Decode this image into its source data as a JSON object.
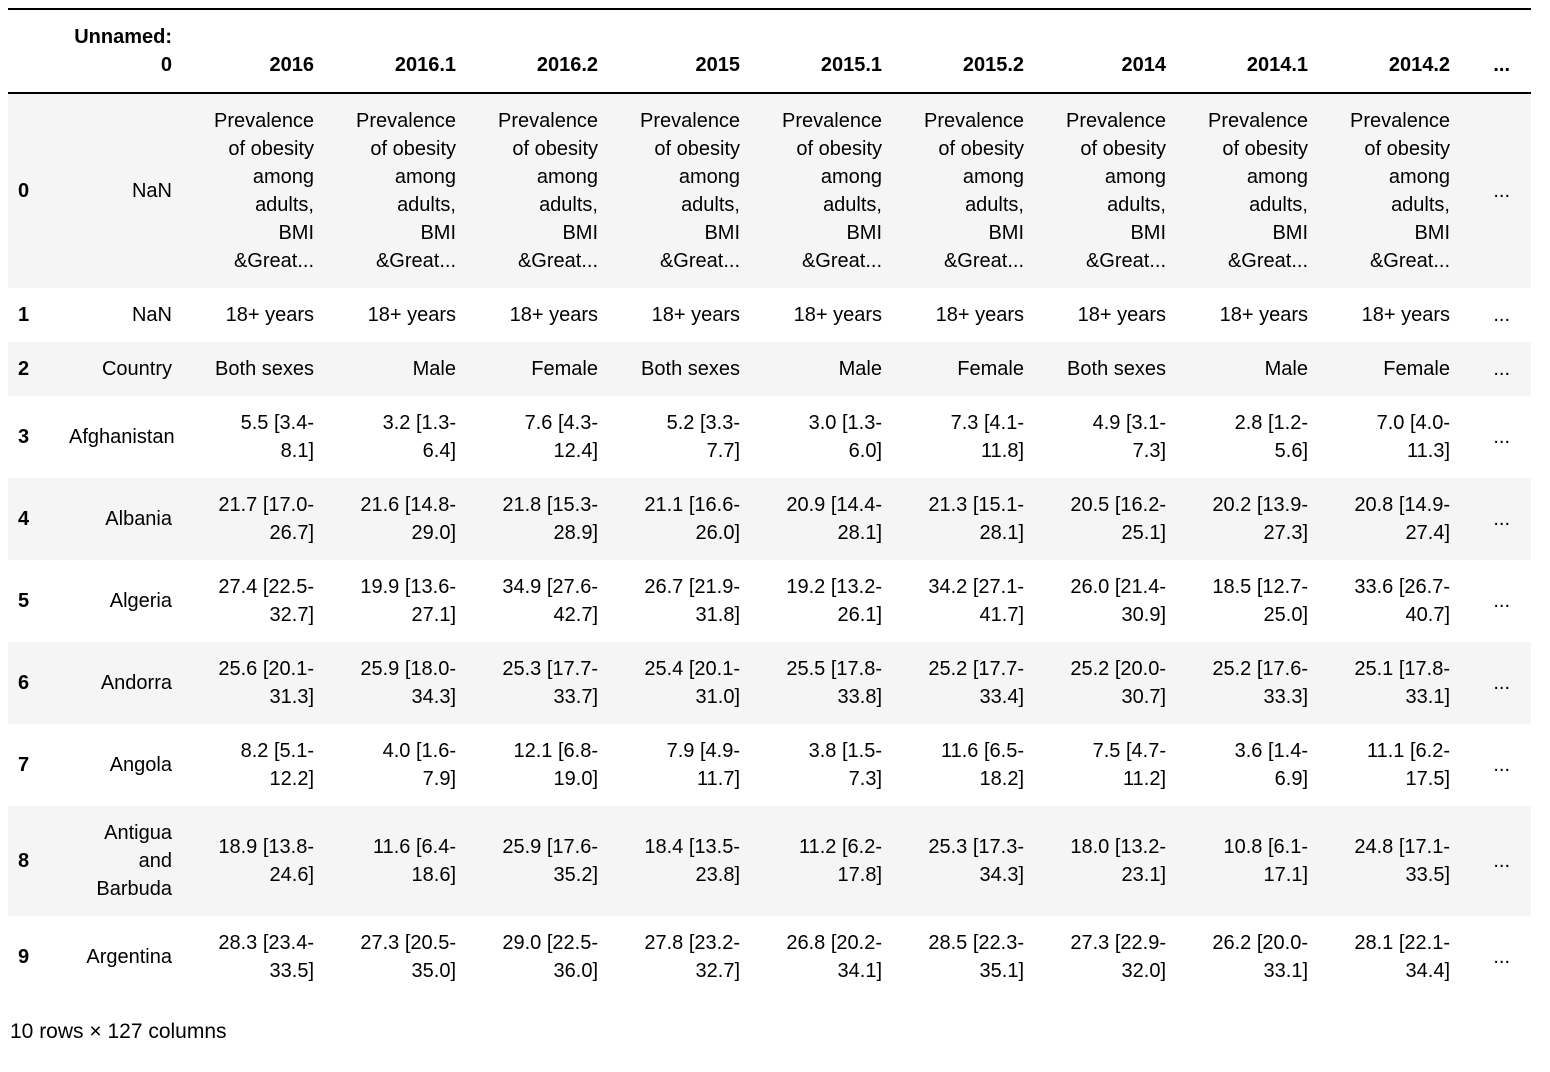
{
  "table": {
    "columns": [
      "Unnamed: 0",
      "2016",
      "2016.1",
      "2016.2",
      "2015",
      "2015.1",
      "2015.2",
      "2014",
      "2014.1",
      "2014.2",
      "..."
    ],
    "rows": [
      {
        "index": "0",
        "cells": [
          "NaN",
          "Prevalence of obesity among adults, BMI &Great...",
          "Prevalence of obesity among adults, BMI &Great...",
          "Prevalence of obesity among adults, BMI &Great...",
          "Prevalence of obesity among adults, BMI &Great...",
          "Prevalence of obesity among adults, BMI &Great...",
          "Prevalence of obesity among adults, BMI &Great...",
          "Prevalence of obesity among adults, BMI &Great...",
          "Prevalence of obesity among adults, BMI &Great...",
          "Prevalence of obesity among adults, BMI &Great...",
          "..."
        ]
      },
      {
        "index": "1",
        "cells": [
          "NaN",
          "18+ years",
          "18+ years",
          "18+ years",
          "18+ years",
          "18+ years",
          "18+ years",
          "18+ years",
          "18+ years",
          "18+ years",
          "..."
        ]
      },
      {
        "index": "2",
        "cells": [
          "Country",
          "Both sexes",
          "Male",
          "Female",
          "Both sexes",
          "Male",
          "Female",
          "Both sexes",
          "Male",
          "Female",
          "..."
        ]
      },
      {
        "index": "3",
        "cells": [
          "Afghanistan",
          "5.5 [3.4-8.1]",
          "3.2 [1.3-6.4]",
          "7.6 [4.3-12.4]",
          "5.2 [3.3-7.7]",
          "3.0 [1.3-6.0]",
          "7.3 [4.1-11.8]",
          "4.9 [3.1-7.3]",
          "2.8 [1.2-5.6]",
          "7.0 [4.0-11.3]",
          "..."
        ]
      },
      {
        "index": "4",
        "cells": [
          "Albania",
          "21.7 [17.0-26.7]",
          "21.6 [14.8-29.0]",
          "21.8 [15.3-28.9]",
          "21.1 [16.6-26.0]",
          "20.9 [14.4-28.1]",
          "21.3 [15.1-28.1]",
          "20.5 [16.2-25.1]",
          "20.2 [13.9-27.3]",
          "20.8 [14.9-27.4]",
          "..."
        ]
      },
      {
        "index": "5",
        "cells": [
          "Algeria",
          "27.4 [22.5-32.7]",
          "19.9 [13.6-27.1]",
          "34.9 [27.6-42.7]",
          "26.7 [21.9-31.8]",
          "19.2 [13.2-26.1]",
          "34.2 [27.1-41.7]",
          "26.0 [21.4-30.9]",
          "18.5 [12.7-25.0]",
          "33.6 [26.7-40.7]",
          "..."
        ]
      },
      {
        "index": "6",
        "cells": [
          "Andorra",
          "25.6 [20.1-31.3]",
          "25.9 [18.0-34.3]",
          "25.3 [17.7-33.7]",
          "25.4 [20.1-31.0]",
          "25.5 [17.8-33.8]",
          "25.2 [17.7-33.4]",
          "25.2 [20.0-30.7]",
          "25.2 [17.6-33.3]",
          "25.1 [17.8-33.1]",
          "..."
        ]
      },
      {
        "index": "7",
        "cells": [
          "Angola",
          "8.2 [5.1-12.2]",
          "4.0 [1.6-7.9]",
          "12.1 [6.8-19.0]",
          "7.9 [4.9-11.7]",
          "3.8 [1.5-7.3]",
          "11.6 [6.5-18.2]",
          "7.5 [4.7-11.2]",
          "3.6 [1.4-6.9]",
          "11.1 [6.2-17.5]",
          "..."
        ]
      },
      {
        "index": "8",
        "cells": [
          "Antigua and Barbuda",
          "18.9 [13.8-24.6]",
          "11.6 [6.4-18.6]",
          "25.9 [17.6-35.2]",
          "18.4 [13.5-23.8]",
          "11.2 [6.2-17.8]",
          "25.3 [17.3-34.3]",
          "18.0 [13.2-23.1]",
          "10.8 [6.1-17.1]",
          "24.8 [17.1-33.5]",
          "..."
        ]
      },
      {
        "index": "9",
        "cells": [
          "Argentina",
          "28.3 [23.4-33.5]",
          "27.3 [20.5-35.0]",
          "29.0 [22.5-36.0]",
          "27.8 [23.2-32.7]",
          "26.8 [20.2-34.1]",
          "28.5 [22.3-35.1]",
          "27.3 [22.9-32.0]",
          "26.2 [20.0-33.1]",
          "28.1 [22.1-34.4]",
          "..."
        ]
      }
    ]
  },
  "footer": {
    "summary": "10 rows × 127 columns"
  },
  "colors": {
    "row_stripe": "#f5f5f5",
    "border": "#000000"
  }
}
